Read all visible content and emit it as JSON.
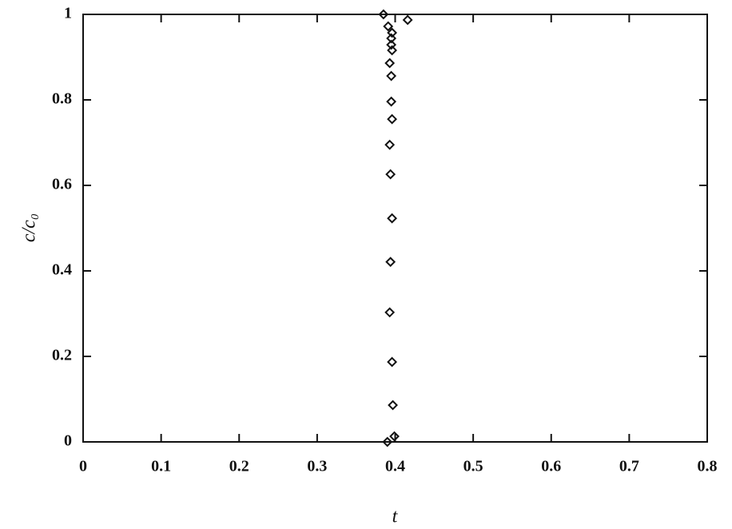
{
  "chart_data": {
    "type": "scatter",
    "xlabel": "t",
    "ylabel": "c/c₀",
    "x": [
      0.385,
      0.416,
      0.391,
      0.396,
      0.395,
      0.395,
      0.396,
      0.393,
      0.395,
      0.395,
      0.396,
      0.393,
      0.394,
      0.396,
      0.394,
      0.393,
      0.396,
      0.397,
      0.399,
      0.39
    ],
    "values": [
      1.0,
      0.987,
      0.972,
      0.957,
      0.944,
      0.929,
      0.916,
      0.886,
      0.856,
      0.796,
      0.755,
      0.695,
      0.626,
      0.523,
      0.421,
      0.303,
      0.187,
      0.086,
      0.013,
      0.0
    ],
    "color": "#111111",
    "xlim": [
      0,
      0.8
    ],
    "xticks": [
      0,
      0.1,
      0.2,
      0.3,
      0.4,
      0.5,
      0.6,
      0.7,
      0.8
    ],
    "ylim": [
      0,
      1
    ],
    "yticks": [
      0,
      0.2,
      0.4,
      0.6,
      0.8,
      1
    ],
    "grid": false
  }
}
